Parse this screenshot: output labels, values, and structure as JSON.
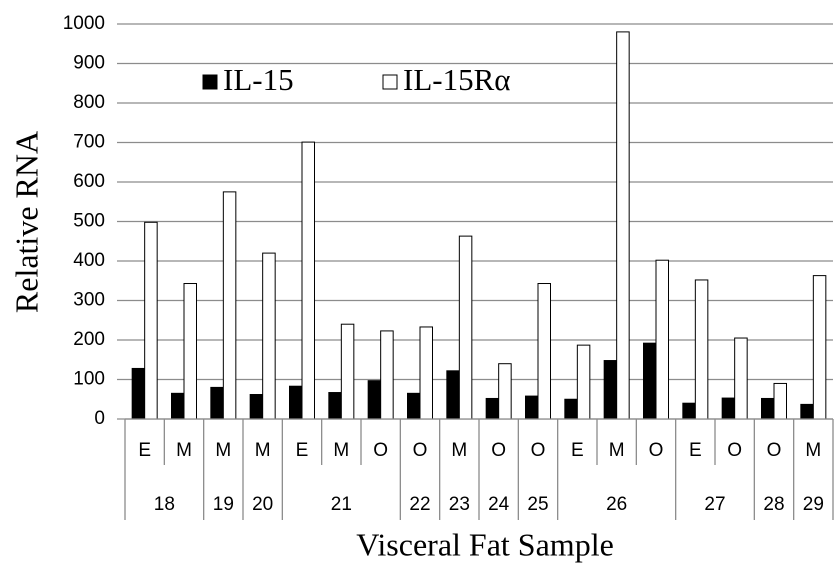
{
  "chart_data": {
    "type": "bar",
    "y_label": "Relative RNA",
    "x_label": "Visceral Fat Sample",
    "categories": [
      "E",
      "M",
      "M",
      "M",
      "E",
      "M",
      "O",
      "O",
      "M",
      "O",
      "O",
      "E",
      "M",
      "O",
      "E",
      "O",
      "O",
      "M"
    ],
    "sample": [
      "18",
      null,
      "19",
      "20",
      "21",
      null,
      null,
      "22",
      "23",
      "24",
      "25",
      "26",
      null,
      null,
      "27",
      null,
      "28",
      "29"
    ],
    "series": [
      {
        "name": "IL-15",
        "color": "#000000",
        "values": [
          128,
          65,
          80,
          62,
          83,
          67,
          97,
          65,
          122,
          52,
          58,
          50,
          148,
          192,
          40,
          53,
          52,
          37
        ]
      },
      {
        "name": "IL-15Rα",
        "color": "#ffffff",
        "values": [
          498,
          343,
          575,
          420,
          701,
          240,
          223,
          233,
          463,
          140,
          343,
          187,
          980,
          402,
          352,
          205,
          90,
          363
        ]
      }
    ],
    "ylim": [
      0,
      1000
    ],
    "yticks": [
      0,
      100,
      200,
      300,
      400,
      500,
      600,
      700,
      800,
      900,
      1000
    ],
    "grid": true,
    "legend": "top-left"
  }
}
